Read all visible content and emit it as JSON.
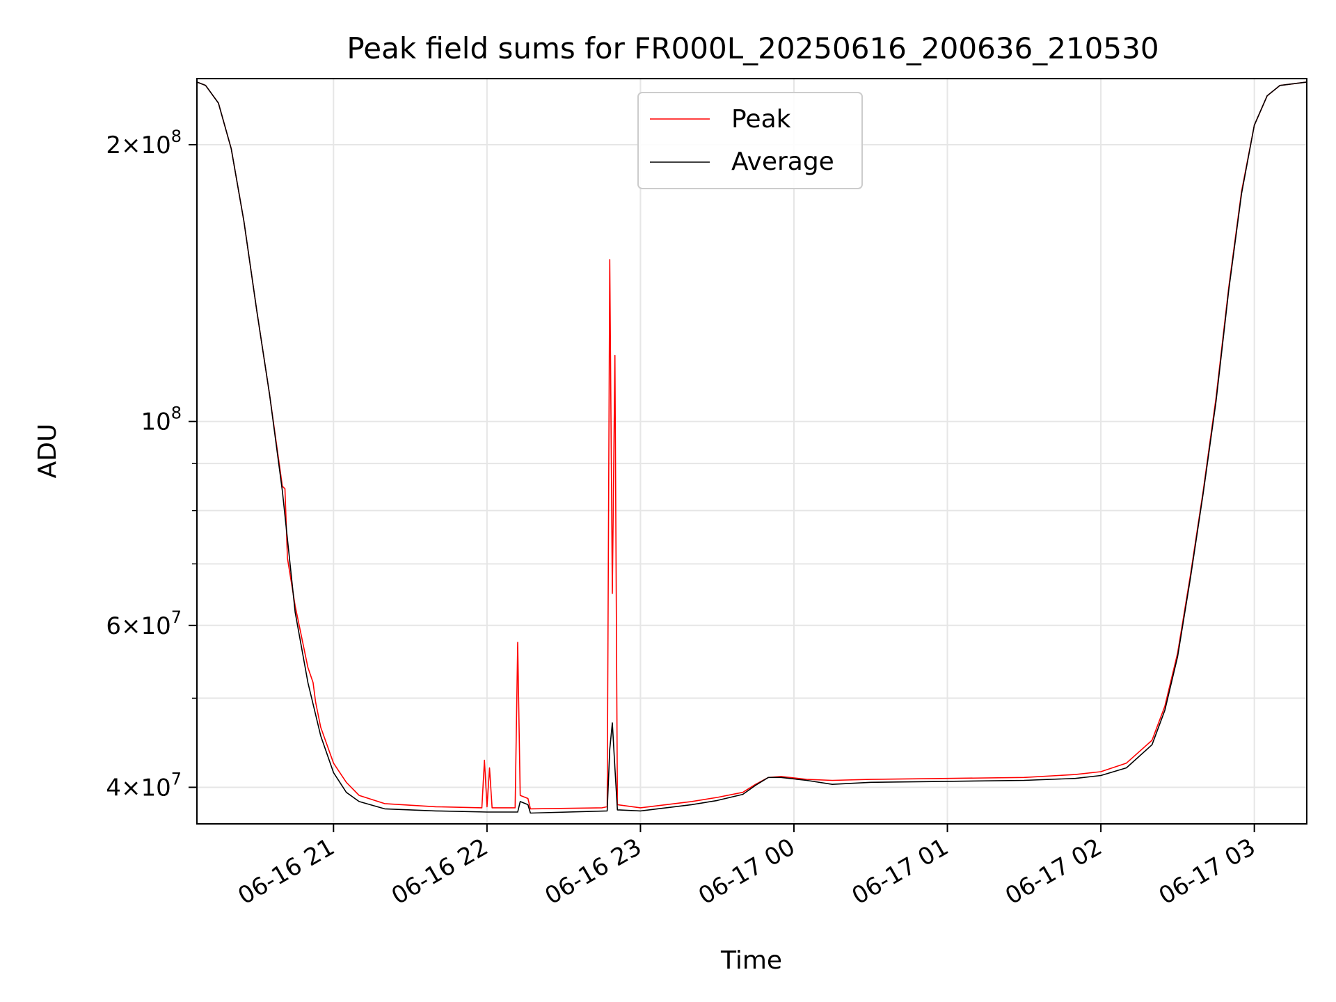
{
  "chart_data": {
    "type": "line",
    "title": "Peak field sums for FR000L_20250616_200636_210530",
    "xlabel": "Time",
    "ylabel": "ADU",
    "yscale": "log",
    "xlim": [
      "2025-06-16 20:06:36",
      "2025-06-17 03:20:30"
    ],
    "ylim": [
      36500000,
      236000000
    ],
    "grid": true,
    "legend_position": "top-center",
    "x_ticks": [
      {
        "value": "2025-06-16 21:00",
        "label": "06-16 21"
      },
      {
        "value": "2025-06-16 22:00",
        "label": "06-16 22"
      },
      {
        "value": "2025-06-16 23:00",
        "label": "06-16 23"
      },
      {
        "value": "2025-06-17 00:00",
        "label": "06-17 00"
      },
      {
        "value": "2025-06-17 01:00",
        "label": "06-17 01"
      },
      {
        "value": "2025-06-17 02:00",
        "label": "06-17 02"
      },
      {
        "value": "2025-06-17 03:00",
        "label": "06-17 03"
      }
    ],
    "y_ticks": [
      {
        "value": 40000000,
        "mantissa": "4",
        "exponent": "7"
      },
      {
        "value": 60000000,
        "mantissa": "6",
        "exponent": "7"
      },
      {
        "value": 100000000,
        "mantissa": "",
        "exponent": "8"
      },
      {
        "value": 200000000,
        "mantissa": "2",
        "exponent": "8"
      }
    ],
    "y_minor_ticks": [
      50000000,
      70000000,
      80000000,
      90000000
    ],
    "series": [
      {
        "name": "Peak",
        "color": "#ff0000",
        "points": [
          [
            "2025-06-16 20:06:36",
            234000000
          ],
          [
            "2025-06-16 20:10",
            232000000
          ],
          [
            "2025-06-16 20:15",
            222000000
          ],
          [
            "2025-06-16 20:20",
            198000000
          ],
          [
            "2025-06-16 20:25",
            165000000
          ],
          [
            "2025-06-16 20:30",
            132000000
          ],
          [
            "2025-06-16 20:35",
            107000000
          ],
          [
            "2025-06-16 20:40",
            85000000
          ],
          [
            "2025-06-16 20:41",
            84500000
          ],
          [
            "2025-06-16 20:42",
            71000000
          ],
          [
            "2025-06-16 20:45",
            63000000
          ],
          [
            "2025-06-16 20:50",
            54000000
          ],
          [
            "2025-06-16 20:52",
            52000000
          ],
          [
            "2025-06-16 20:53",
            49500000
          ],
          [
            "2025-06-16 20:55",
            46500000
          ],
          [
            "2025-06-16 21:00",
            42500000
          ],
          [
            "2025-06-16 21:05",
            40500000
          ],
          [
            "2025-06-16 21:10",
            39200000
          ],
          [
            "2025-06-16 21:20",
            38400000
          ],
          [
            "2025-06-16 21:40",
            38100000
          ],
          [
            "2025-06-16 21:58",
            38000000
          ],
          [
            "2025-06-16 21:59",
            42800000
          ],
          [
            "2025-06-16 22:00",
            38100000
          ],
          [
            "2025-06-16 22:01",
            42000000
          ],
          [
            "2025-06-16 22:02",
            38000000
          ],
          [
            "2025-06-16 22:11",
            38000000
          ],
          [
            "2025-06-16 22:12",
            57500000
          ],
          [
            "2025-06-16 22:13",
            39200000
          ],
          [
            "2025-06-16 22:16",
            38900000
          ],
          [
            "2025-06-16 22:17",
            37900000
          ],
          [
            "2025-06-16 22:45",
            38000000
          ],
          [
            "2025-06-16 22:47",
            38100000
          ],
          [
            "2025-06-16 22:48",
            150000000
          ],
          [
            "2025-06-16 22:49",
            65000000
          ],
          [
            "2025-06-16 22:50",
            118000000
          ],
          [
            "2025-06-16 22:51",
            38300000
          ],
          [
            "2025-06-16 23:00",
            38000000
          ],
          [
            "2025-06-16 23:10",
            38300000
          ],
          [
            "2025-06-16 23:20",
            38600000
          ],
          [
            "2025-06-16 23:30",
            39000000
          ],
          [
            "2025-06-16 23:40",
            39500000
          ],
          [
            "2025-06-16 23:45",
            40300000
          ],
          [
            "2025-06-16 23:50",
            41000000
          ],
          [
            "2025-06-16 23:55",
            41100000
          ],
          [
            "2025-06-17 00:05",
            40800000
          ],
          [
            "2025-06-17 00:15",
            40700000
          ],
          [
            "2025-06-17 00:30",
            40800000
          ],
          [
            "2025-06-17 01:00",
            40900000
          ],
          [
            "2025-06-17 01:30",
            41000000
          ],
          [
            "2025-06-17 01:50",
            41300000
          ],
          [
            "2025-06-17 02:00",
            41600000
          ],
          [
            "2025-06-17 02:10",
            42500000
          ],
          [
            "2025-06-17 02:20",
            45000000
          ],
          [
            "2025-06-17 02:25",
            49000000
          ],
          [
            "2025-06-17 02:30",
            56000000
          ],
          [
            "2025-06-17 02:35",
            68000000
          ],
          [
            "2025-06-17 02:40",
            84000000
          ],
          [
            "2025-06-17 02:45",
            106000000
          ],
          [
            "2025-06-17 02:50",
            140000000
          ],
          [
            "2025-06-17 02:55",
            178000000
          ],
          [
            "2025-06-17 03:00",
            210000000
          ],
          [
            "2025-06-17 03:05",
            226000000
          ],
          [
            "2025-06-17 03:10",
            232000000
          ],
          [
            "2025-06-17 03:20:30",
            234000000
          ]
        ]
      },
      {
        "name": "Average",
        "color": "#000000",
        "points": [
          [
            "2025-06-16 20:06:36",
            234000000
          ],
          [
            "2025-06-16 20:10",
            232000000
          ],
          [
            "2025-06-16 20:15",
            222000000
          ],
          [
            "2025-06-16 20:20",
            198000000
          ],
          [
            "2025-06-16 20:25",
            165000000
          ],
          [
            "2025-06-16 20:30",
            132000000
          ],
          [
            "2025-06-16 20:35",
            107000000
          ],
          [
            "2025-06-16 20:40",
            84000000
          ],
          [
            "2025-06-16 20:45",
            62000000
          ],
          [
            "2025-06-16 20:50",
            52000000
          ],
          [
            "2025-06-16 20:55",
            45500000
          ],
          [
            "2025-06-16 21:00",
            41500000
          ],
          [
            "2025-06-16 21:05",
            39500000
          ],
          [
            "2025-06-16 21:10",
            38600000
          ],
          [
            "2025-06-16 21:20",
            37900000
          ],
          [
            "2025-06-16 21:40",
            37700000
          ],
          [
            "2025-06-16 22:00",
            37600000
          ],
          [
            "2025-06-16 22:12",
            37600000
          ],
          [
            "2025-06-16 22:13",
            38600000
          ],
          [
            "2025-06-16 22:16",
            38300000
          ],
          [
            "2025-06-16 22:17",
            37500000
          ],
          [
            "2025-06-16 22:47",
            37700000
          ],
          [
            "2025-06-16 22:48",
            44000000
          ],
          [
            "2025-06-16 22:49",
            47000000
          ],
          [
            "2025-06-16 22:50",
            42000000
          ],
          [
            "2025-06-16 22:51",
            37800000
          ],
          [
            "2025-06-16 23:00",
            37700000
          ],
          [
            "2025-06-16 23:10",
            38000000
          ],
          [
            "2025-06-16 23:20",
            38300000
          ],
          [
            "2025-06-16 23:30",
            38700000
          ],
          [
            "2025-06-16 23:40",
            39300000
          ],
          [
            "2025-06-16 23:45",
            40200000
          ],
          [
            "2025-06-16 23:50",
            41000000
          ],
          [
            "2025-06-16 23:55",
            41000000
          ],
          [
            "2025-06-17 00:05",
            40700000
          ],
          [
            "2025-06-17 00:15",
            40300000
          ],
          [
            "2025-06-17 00:30",
            40500000
          ],
          [
            "2025-06-17 01:00",
            40600000
          ],
          [
            "2025-06-17 01:30",
            40700000
          ],
          [
            "2025-06-17 01:50",
            40900000
          ],
          [
            "2025-06-17 02:00",
            41200000
          ],
          [
            "2025-06-17 02:10",
            42000000
          ],
          [
            "2025-06-17 02:20",
            44500000
          ],
          [
            "2025-06-17 02:25",
            48500000
          ],
          [
            "2025-06-17 02:30",
            55500000
          ],
          [
            "2025-06-17 02:35",
            67500000
          ],
          [
            "2025-06-17 02:40",
            83500000
          ],
          [
            "2025-06-17 02:45",
            105000000
          ],
          [
            "2025-06-17 02:50",
            139000000
          ],
          [
            "2025-06-17 02:55",
            177000000
          ],
          [
            "2025-06-17 03:00",
            210000000
          ],
          [
            "2025-06-17 03:05",
            226000000
          ],
          [
            "2025-06-17 03:10",
            232000000
          ],
          [
            "2025-06-17 03:20:30",
            234000000
          ]
        ]
      }
    ]
  }
}
